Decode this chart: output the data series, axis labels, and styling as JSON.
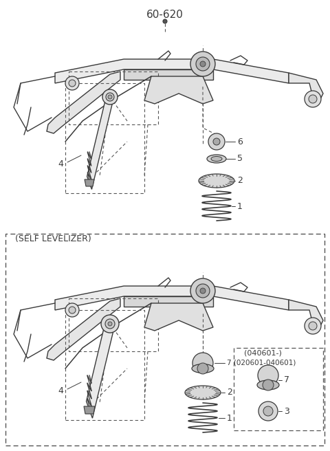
{
  "title": "60-620",
  "bg": "#ffffff",
  "lc": "#3a3a3a",
  "dc": "#555555",
  "fig_width": 4.8,
  "fig_height": 6.56,
  "self_levelizer_label": "(SELF LEVELIZER)",
  "sub_box_label": "(040601-)"
}
